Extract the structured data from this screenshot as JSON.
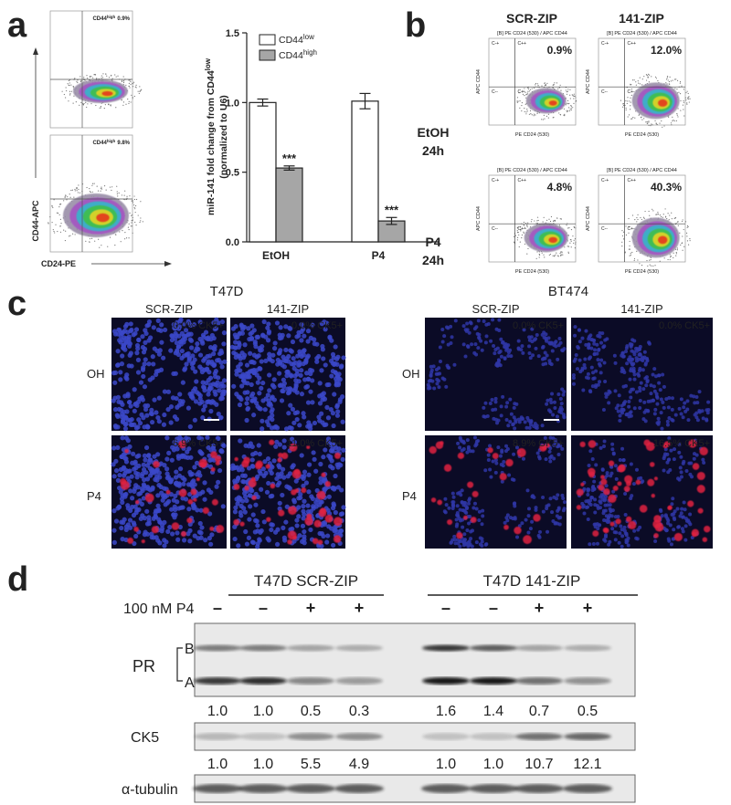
{
  "panel_a": {
    "label": "a",
    "flow": {
      "y_label": "CD44-APC",
      "x_label": "CD24-PE",
      "gates": [
        {
          "name": "CD44",
          "sup": "high",
          "percent": "0.9%"
        },
        {
          "name": "CD44",
          "sup": "high",
          "percent": "9.8%"
        }
      ]
    },
    "chart_data": {
      "type": "bar",
      "ylabel": {
        "text": "miR-141 fold change from CD44",
        "sup": "low",
        "line2": "(normalized to U6)"
      },
      "categories": [
        "EtOH",
        "P4"
      ],
      "series": [
        {
          "name": "CD44",
          "name_sup": "low",
          "color": "#ffffff",
          "values": [
            1.0,
            1.01
          ],
          "errors": [
            0.025,
            0.055
          ]
        },
        {
          "name": "CD44",
          "name_sup": "high",
          "color": "#a6a6a6",
          "values": [
            0.53,
            0.15
          ],
          "errors": [
            0.015,
            0.025
          ]
        }
      ],
      "annotations": [
        "***",
        "***"
      ],
      "ylim": [
        0,
        1.5
      ],
      "yticks": [
        {
          "value": 0,
          "label": "0.0"
        },
        {
          "value": 0.5,
          "label": "0.5"
        },
        {
          "value": 1,
          "label": "1.0"
        },
        {
          "value": 1.5,
          "label": "1.5"
        }
      ]
    }
  },
  "panel_b": {
    "label": "b",
    "columns": [
      "SCR-ZIP",
      "141-ZIP"
    ],
    "rows": [
      [
        "EtOH",
        "24h"
      ],
      [
        "P4",
        "24h"
      ]
    ],
    "plot_header": "[B] PE CD24 (530) / APC CD44",
    "x_label": "PE CD24 (530)",
    "y_label": "APC CD44",
    "quadrants": [
      "C-+",
      "C++",
      "C--",
      "C+-"
    ],
    "percents": [
      [
        "0.9%",
        "12.0%"
      ],
      [
        "4.8%",
        "40.3%"
      ]
    ]
  },
  "panel_c": {
    "label": "c",
    "groups": [
      {
        "name": "T47D",
        "columns": [
          "SCR-ZIP",
          "141-ZIP"
        ],
        "rows": [
          "OH",
          "P4"
        ],
        "percents": [
          [
            "0.0% CK5+",
            "0.0% CK5+"
          ],
          [
            "6.9% CK5+",
            "11.0% CK5+"
          ]
        ]
      },
      {
        "name": "BT474",
        "columns": [
          "SCR-ZIP",
          "141-ZIP"
        ],
        "rows": [
          "OH",
          "P4"
        ],
        "percents": [
          [
            "0.0% CK5+",
            "0.0% CK5+"
          ],
          [
            "8.9% CK5+",
            "16.5% CK5+"
          ]
        ]
      }
    ]
  },
  "panel_d": {
    "label": "d",
    "groups": [
      "T47D SCR-ZIP",
      "T47D 141-ZIP"
    ],
    "treatment": "100 nM P4",
    "lanes": [
      "–",
      "–",
      "+",
      "+",
      "–",
      "–",
      "+",
      "+"
    ],
    "blots": [
      {
        "name": "PR",
        "bands": [
          "B",
          "A"
        ],
        "quant": [
          "1.0",
          "1.0",
          "0.5",
          "0.3",
          "1.6",
          "1.4",
          "0.7",
          "0.5"
        ]
      },
      {
        "name": "CK5",
        "quant": [
          "1.0",
          "1.0",
          "5.5",
          "4.9",
          "1.0",
          "1.0",
          "10.7",
          "12.1"
        ]
      },
      {
        "name": "α-tubulin"
      }
    ]
  }
}
